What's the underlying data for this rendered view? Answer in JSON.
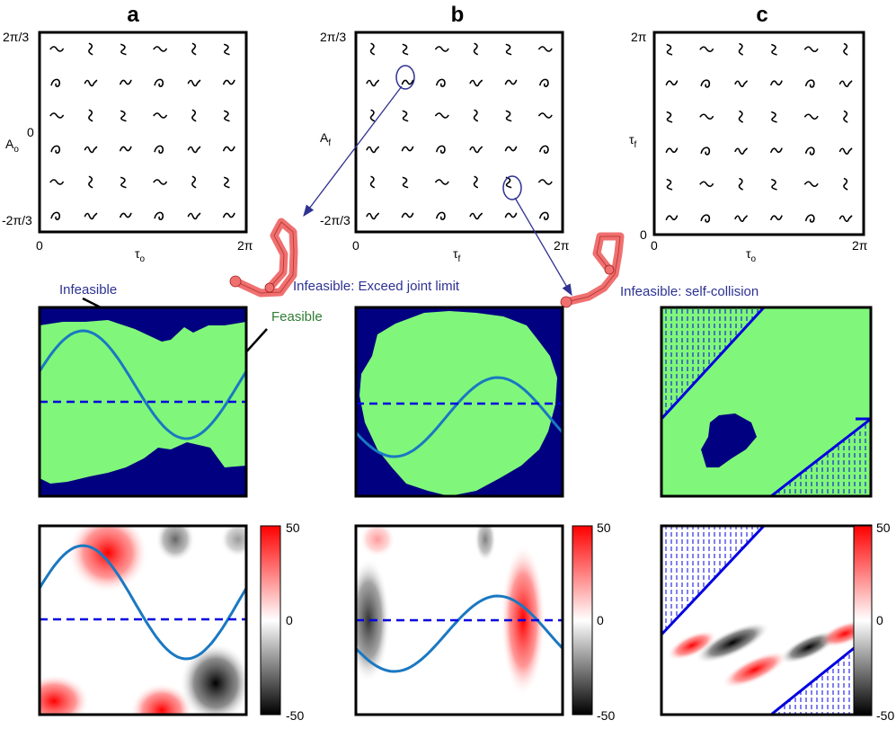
{
  "panel_labels": [
    "a",
    "b",
    "c"
  ],
  "top_panels": [
    {
      "id": "a",
      "y_ticks": [
        "2π/3",
        "0",
        "-2π/3"
      ],
      "x_ticks": [
        "0",
        "2π"
      ],
      "y_label": "A",
      "y_sub": "o",
      "x_label": "τ",
      "x_sub": "o"
    },
    {
      "id": "b",
      "y_ticks": [
        "2π/3",
        "0",
        "-2π/3"
      ],
      "x_ticks": [
        "0",
        "2π"
      ],
      "y_label": "A",
      "y_sub": "f",
      "x_label": "τ",
      "x_sub": "f"
    },
    {
      "id": "c",
      "y_ticks": [
        "2π",
        "0"
      ],
      "x_ticks": [
        "0",
        "2π"
      ],
      "y_label": "τ",
      "y_sub": "f",
      "x_label": "τ",
      "x_sub": "o"
    }
  ],
  "annotations": {
    "infeasible": "Infeasible",
    "feasible": "Feasible",
    "joint_limit": "Infeasible: Exceed joint limit",
    "self_collision": "Infeasible: self-collision"
  },
  "colorbar_ticks": [
    "50",
    "0",
    "-50"
  ],
  "colors": {
    "feasible": "#80f77a",
    "infeasible": "#000080",
    "sine_curve": "#1a78c2",
    "dashed_line": "#0000e0",
    "positive": "#ff0000",
    "negative": "#000000",
    "robot_link": "#f07070",
    "arrow": "#2e3192"
  }
}
